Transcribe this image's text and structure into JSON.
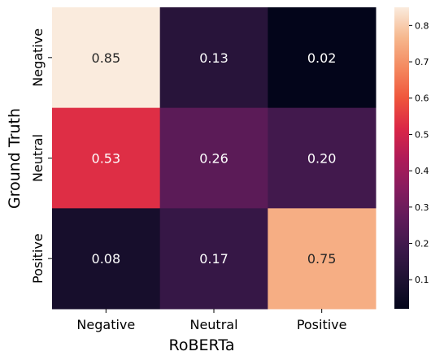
{
  "chart_data": {
    "type": "heatmap",
    "title": "",
    "xlabel": "RoBERTa",
    "ylabel": "Ground Truth",
    "x_categories": [
      "Negative",
      "Neutral",
      "Positive"
    ],
    "y_categories": [
      "Negative",
      "Neutral",
      "Positive"
    ],
    "values": [
      [
        0.85,
        0.13,
        0.02
      ],
      [
        0.53,
        0.26,
        0.2
      ],
      [
        0.08,
        0.17,
        0.75
      ]
    ],
    "cell_labels": [
      [
        "0.85",
        "0.13",
        "0.02"
      ],
      [
        "0.53",
        "0.26",
        "0.20"
      ],
      [
        "0.08",
        "0.17",
        "0.75"
      ]
    ],
    "colorbar": {
      "vmin": 0.02,
      "vmax": 0.85,
      "ticks": [
        0.1,
        0.2,
        0.3,
        0.4,
        0.5,
        0.6,
        0.7,
        0.8
      ],
      "tick_labels": [
        "0.1",
        "0.2",
        "0.3",
        "0.4",
        "0.5",
        "0.6",
        "0.7",
        "0.8"
      ]
    },
    "colormap": "rocket",
    "grid": false
  }
}
